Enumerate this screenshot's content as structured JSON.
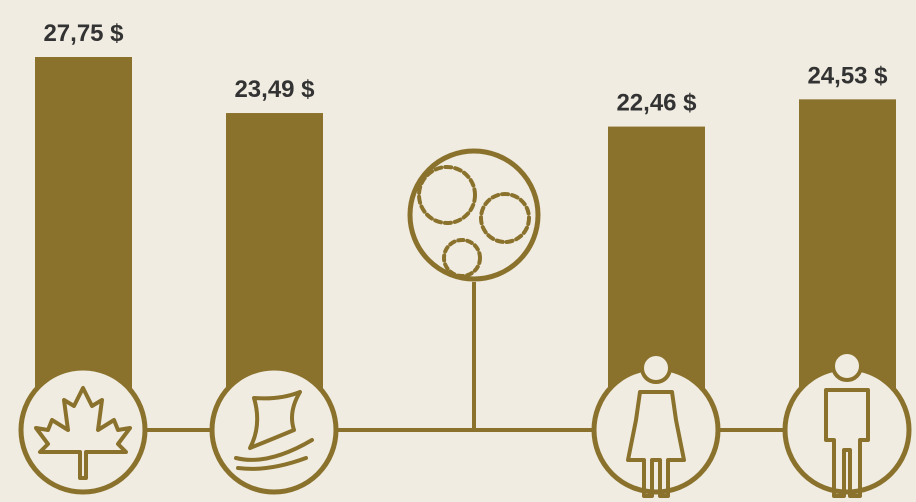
{
  "chart_data": {
    "type": "bar",
    "categories": [
      null,
      null,
      null,
      null
    ],
    "values": [
      27.75,
      23.49,
      22.46,
      24.53
    ],
    "value_labels": [
      "27,75 $",
      "23,49 $",
      "22,46 $",
      "24,53 $"
    ],
    "color": "#8a722d"
  }
}
